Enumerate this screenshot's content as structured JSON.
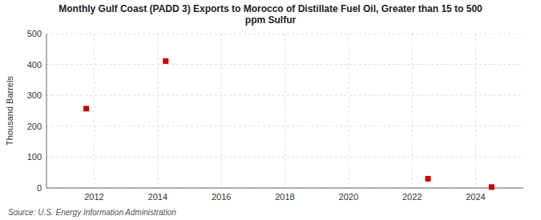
{
  "chart_data": {
    "type": "scatter",
    "title": "Monthly Gulf Coast (PADD 3) Exports to Morocco of Distillate Fuel Oil, Greater than 15 to 500\nppm Sulfur",
    "ylabel": "Thousand Barrels",
    "annotations": [
      "Source: U.S. Energy Information Administration"
    ],
    "x": [
      2011.75,
      2014.25,
      2022.5,
      2024.5
    ],
    "values": [
      257,
      411,
      30,
      3
    ],
    "color": "#cc0000",
    "marker": "square",
    "xlim": [
      2010.5,
      2025.5
    ],
    "ylim": [
      0,
      500
    ],
    "xticks": [
      2012,
      2014,
      2016,
      2018,
      2020,
      2022,
      2024
    ],
    "yticks": [
      0,
      100,
      200,
      300,
      400,
      500
    ],
    "grid": true
  }
}
